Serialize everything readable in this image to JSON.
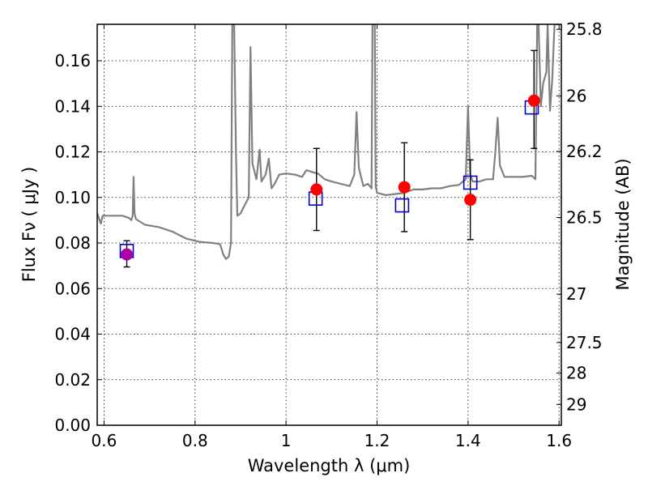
{
  "chart_data": {
    "type": "scatter",
    "xlabel": "Wavelength  λ (μm)",
    "ylabel": "Flux  Fν  ( μJy )",
    "ylabel_right": "Magnitude (AB)",
    "xlim": [
      0.585,
      1.605
    ],
    "ylim": [
      0.0,
      0.176
    ],
    "grid": true,
    "x_ticks": [
      {
        "value": 0.6,
        "label": "0.6"
      },
      {
        "value": 0.8,
        "label": "0.8"
      },
      {
        "value": 1.0,
        "label": "1"
      },
      {
        "value": 1.2,
        "label": "1.2"
      },
      {
        "value": 1.4,
        "label": "1.4"
      },
      {
        "value": 1.6,
        "label": "1.6"
      }
    ],
    "y_ticks": [
      {
        "value": 0.0,
        "label": "0.00"
      },
      {
        "value": 0.02,
        "label": "0.02"
      },
      {
        "value": 0.04,
        "label": "0.04"
      },
      {
        "value": 0.06,
        "label": "0.06"
      },
      {
        "value": 0.08,
        "label": "0.08"
      },
      {
        "value": 0.1,
        "label": "0.10"
      },
      {
        "value": 0.12,
        "label": "0.12"
      },
      {
        "value": 0.14,
        "label": "0.14"
      },
      {
        "value": 0.16,
        "label": "0.16"
      }
    ],
    "right_ticks": [
      {
        "magnitude": 25.8,
        "label": "25.8"
      },
      {
        "magnitude": 26.0,
        "label": "26"
      },
      {
        "magnitude": 26.2,
        "label": "26.2"
      },
      {
        "magnitude": 26.5,
        "label": "26.5"
      },
      {
        "magnitude": 27.0,
        "label": "27"
      },
      {
        "magnitude": 27.5,
        "label": "27.5"
      },
      {
        "magnitude": 28.0,
        "label": "28"
      },
      {
        "magnitude": 29.0,
        "label": "29"
      }
    ],
    "series": [
      {
        "kind": "model_spectrum",
        "color": "#808080",
        "points": [
          [
            0.585,
            0.093
          ],
          [
            0.593,
            0.0885
          ],
          [
            0.597,
            0.092
          ],
          [
            0.61,
            0.092
          ],
          [
            0.625,
            0.092
          ],
          [
            0.64,
            0.092
          ],
          [
            0.655,
            0.091
          ],
          [
            0.66,
            0.09
          ],
          [
            0.663,
            0.092
          ],
          [
            0.665,
            0.109
          ],
          [
            0.667,
            0.093
          ],
          [
            0.67,
            0.0905
          ],
          [
            0.69,
            0.088
          ],
          [
            0.72,
            0.087
          ],
          [
            0.75,
            0.085
          ],
          [
            0.78,
            0.082
          ],
          [
            0.81,
            0.0805
          ],
          [
            0.84,
            0.08
          ],
          [
            0.855,
            0.0795
          ],
          [
            0.862,
            0.075
          ],
          [
            0.868,
            0.073
          ],
          [
            0.874,
            0.074
          ],
          [
            0.879,
            0.08
          ],
          [
            0.882,
            0.176
          ],
          [
            0.886,
            0.176
          ],
          [
            0.89,
            0.12
          ],
          [
            0.893,
            0.092
          ],
          [
            0.9,
            0.093
          ],
          [
            0.91,
            0.097
          ],
          [
            0.918,
            0.1
          ],
          [
            0.922,
            0.166
          ],
          [
            0.926,
            0.115
          ],
          [
            0.935,
            0.108
          ],
          [
            0.942,
            0.121
          ],
          [
            0.946,
            0.107
          ],
          [
            0.955,
            0.11
          ],
          [
            0.962,
            0.117
          ],
          [
            0.968,
            0.104
          ],
          [
            0.975,
            0.106
          ],
          [
            0.985,
            0.11
          ],
          [
            1.0,
            0.1105
          ],
          [
            1.02,
            0.11
          ],
          [
            1.035,
            0.109
          ],
          [
            1.045,
            0.112
          ],
          [
            1.06,
            0.111
          ],
          [
            1.07,
            0.1105
          ],
          [
            1.085,
            0.108
          ],
          [
            1.1,
            0.107
          ],
          [
            1.12,
            0.106
          ],
          [
            1.14,
            0.105
          ],
          [
            1.15,
            0.11
          ],
          [
            1.155,
            0.1375
          ],
          [
            1.16,
            0.113
          ],
          [
            1.17,
            0.105
          ],
          [
            1.18,
            0.106
          ],
          [
            1.188,
            0.104
          ],
          [
            1.19,
            0.176
          ],
          [
            1.195,
            0.176
          ],
          [
            1.197,
            0.105
          ],
          [
            1.2,
            0.102
          ],
          [
            1.22,
            0.101
          ],
          [
            1.24,
            0.1015
          ],
          [
            1.26,
            0.102
          ],
          [
            1.28,
            0.1035
          ],
          [
            1.3,
            0.1035
          ],
          [
            1.32,
            0.104
          ],
          [
            1.34,
            0.104
          ],
          [
            1.36,
            0.105
          ],
          [
            1.38,
            0.1055
          ],
          [
            1.395,
            0.108
          ],
          [
            1.4,
            0.14
          ],
          [
            1.405,
            0.11
          ],
          [
            1.41,
            0.107
          ],
          [
            1.425,
            0.107
          ],
          [
            1.44,
            0.108
          ],
          [
            1.455,
            0.108
          ],
          [
            1.46,
            0.12
          ],
          [
            1.465,
            0.135
          ],
          [
            1.47,
            0.114
          ],
          [
            1.48,
            0.109
          ],
          [
            1.5,
            0.109
          ],
          [
            1.52,
            0.109
          ],
          [
            1.54,
            0.1095
          ],
          [
            1.548,
            0.108
          ],
          [
            1.552,
            0.176
          ],
          [
            1.555,
            0.176
          ],
          [
            1.56,
            0.14
          ],
          [
            1.565,
            0.15
          ],
          [
            1.572,
            0.155
          ],
          [
            1.575,
            0.176
          ],
          [
            1.58,
            0.138
          ],
          [
            1.585,
            0.152
          ],
          [
            1.59,
            0.176
          ],
          [
            1.605,
            0.176
          ]
        ]
      },
      {
        "kind": "model_photometry",
        "color": "#0000cc",
        "marker": "open-square",
        "points": [
          {
            "x": 0.65,
            "y": 0.0765
          },
          {
            "x": 1.065,
            "y": 0.0995
          },
          {
            "x": 1.255,
            "y": 0.0965
          },
          {
            "x": 1.405,
            "y": 0.1065
          },
          {
            "x": 1.54,
            "y": 0.1395
          }
        ]
      },
      {
        "kind": "observed_photometry",
        "color": "#ff0000",
        "marker": "filled-circle",
        "points": [
          {
            "x": 0.65,
            "y": 0.075,
            "yerr_low": 0.0695,
            "yerr_high": 0.081,
            "color": "#aa00aa"
          },
          {
            "x": 1.067,
            "y": 0.1035,
            "yerr_low": 0.0855,
            "yerr_high": 0.1215
          },
          {
            "x": 1.26,
            "y": 0.1045,
            "yerr_low": 0.085,
            "yerr_high": 0.124
          },
          {
            "x": 1.405,
            "y": 0.099,
            "yerr_low": 0.0815,
            "yerr_high": 0.1165
          },
          {
            "x": 1.545,
            "y": 0.1425,
            "yerr_low": 0.1215,
            "yerr_high": 0.1645
          }
        ]
      }
    ]
  }
}
